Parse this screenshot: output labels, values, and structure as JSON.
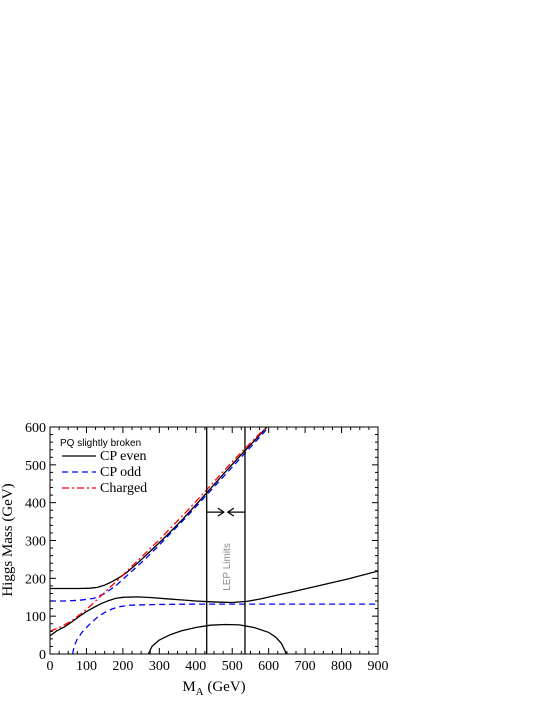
{
  "chart_data": {
    "type": "line",
    "xlabel": "M_A (GeV)",
    "xlabel_main": "M",
    "xlabel_sub": "A",
    "xlabel_unit": " (GeV)",
    "ylabel": "Higgs Mass (GeV)",
    "xlim": [
      0,
      900
    ],
    "ylim": [
      0,
      600
    ],
    "xticks": [
      0,
      100,
      200,
      300,
      400,
      500,
      600,
      700,
      800,
      900
    ],
    "yticks": [
      0,
      100,
      200,
      300,
      400,
      500,
      600
    ],
    "grid": false,
    "legend": {
      "title": "PQ slightly broken",
      "placement": "top-left",
      "entries": [
        {
          "label": "CP even",
          "color": "#000000",
          "style": "solid"
        },
        {
          "label": "CP odd",
          "color": "#0000ff",
          "style": "dashed"
        },
        {
          "label": "Charged",
          "color": "#ff0000",
          "style": "dashdot"
        }
      ]
    },
    "annotations": [
      {
        "text": "LEP Limits",
        "vlines": [
          430,
          535
        ],
        "arrow_y": 375
      }
    ],
    "series": [
      {
        "group": "CP even",
        "color": "#000000",
        "style": "solid",
        "points": [
          [
            0,
            48
          ],
          [
            20,
            62
          ],
          [
            40,
            72
          ],
          [
            60,
            85
          ],
          [
            80,
            99
          ],
          [
            100,
            112
          ],
          [
            120,
            123
          ],
          [
            140,
            133
          ],
          [
            160,
            141
          ],
          [
            180,
            147
          ],
          [
            200,
            150
          ],
          [
            240,
            151
          ],
          [
            280,
            149
          ],
          [
            320,
            146
          ],
          [
            360,
            143
          ],
          [
            400,
            140
          ],
          [
            440,
            138
          ],
          [
            470,
            137
          ],
          [
            500,
            136
          ]
        ]
      },
      {
        "group": "CP even",
        "color": "#000000",
        "style": "solid",
        "points": [
          [
            0,
            173
          ],
          [
            40,
            173
          ],
          [
            80,
            173
          ],
          [
            110,
            174
          ],
          [
            130,
            176
          ],
          [
            150,
            182
          ],
          [
            170,
            191
          ],
          [
            190,
            202
          ],
          [
            210,
            215
          ],
          [
            240,
            240
          ],
          [
            280,
            276
          ],
          [
            320,
            313
          ],
          [
            360,
            352
          ],
          [
            400,
            394
          ],
          [
            440,
            437
          ],
          [
            480,
            480
          ],
          [
            520,
            522
          ],
          [
            560,
            563
          ],
          [
            597,
            602
          ]
        ]
      },
      {
        "group": "CP even",
        "color": "#000000",
        "style": "solid",
        "points": [
          [
            500,
            136
          ],
          [
            540,
            139
          ],
          [
            580,
            146
          ],
          [
            620,
            155
          ],
          [
            660,
            163
          ],
          [
            700,
            172
          ],
          [
            740,
            181
          ],
          [
            780,
            190
          ],
          [
            820,
            199
          ],
          [
            860,
            209
          ],
          [
            900,
            219
          ]
        ]
      },
      {
        "group": "CP even",
        "color": "#000000",
        "style": "solid",
        "points": [
          [
            270,
            0
          ],
          [
            280,
            20
          ],
          [
            300,
            37
          ],
          [
            330,
            51
          ],
          [
            360,
            61
          ],
          [
            400,
            70
          ],
          [
            440,
            76
          ],
          [
            480,
            78
          ],
          [
            520,
            77
          ],
          [
            560,
            70
          ],
          [
            600,
            57
          ],
          [
            620,
            44
          ],
          [
            635,
            28
          ],
          [
            645,
            8
          ],
          [
            648,
            0
          ]
        ]
      },
      {
        "group": "CP odd",
        "color": "#0000ff",
        "style": "dashed",
        "points": [
          [
            62,
            0
          ],
          [
            66,
            20
          ],
          [
            75,
            40
          ],
          [
            90,
            60
          ],
          [
            110,
            80
          ],
          [
            130,
            97
          ],
          [
            150,
            110
          ],
          [
            170,
            119
          ],
          [
            190,
            125
          ],
          [
            220,
            129
          ],
          [
            260,
            130
          ],
          [
            320,
            131
          ],
          [
            400,
            132
          ],
          [
            500,
            132
          ],
          [
            600,
            132
          ],
          [
            700,
            132
          ],
          [
            800,
            132
          ],
          [
            900,
            132
          ]
        ]
      },
      {
        "group": "CP odd",
        "color": "#0000ff",
        "style": "dashed",
        "points": [
          [
            0,
            140
          ],
          [
            40,
            140
          ],
          [
            80,
            142
          ],
          [
            120,
            147
          ],
          [
            150,
            160
          ],
          [
            180,
            180
          ],
          [
            220,
            215
          ],
          [
            260,
            250
          ],
          [
            300,
            288
          ],
          [
            340,
            328
          ],
          [
            380,
            368
          ],
          [
            420,
            410
          ],
          [
            460,
            452
          ],
          [
            500,
            494
          ],
          [
            540,
            536
          ],
          [
            580,
            578
          ],
          [
            600,
            600
          ]
        ]
      },
      {
        "group": "Charged",
        "color": "#ff0000",
        "style": "dashdot",
        "points": [
          [
            0,
            60
          ],
          [
            30,
            72
          ],
          [
            60,
            88
          ],
          [
            90,
            110
          ],
          [
            120,
            135
          ],
          [
            150,
            163
          ],
          [
            180,
            190
          ],
          [
            210,
            218
          ],
          [
            240,
            246
          ],
          [
            270,
            274
          ],
          [
            300,
            302
          ],
          [
            340,
            342
          ],
          [
            380,
            382
          ],
          [
            420,
            424
          ],
          [
            460,
            466
          ],
          [
            500,
            508
          ],
          [
            540,
            548
          ],
          [
            580,
            587
          ],
          [
            600,
            602
          ]
        ]
      }
    ]
  }
}
